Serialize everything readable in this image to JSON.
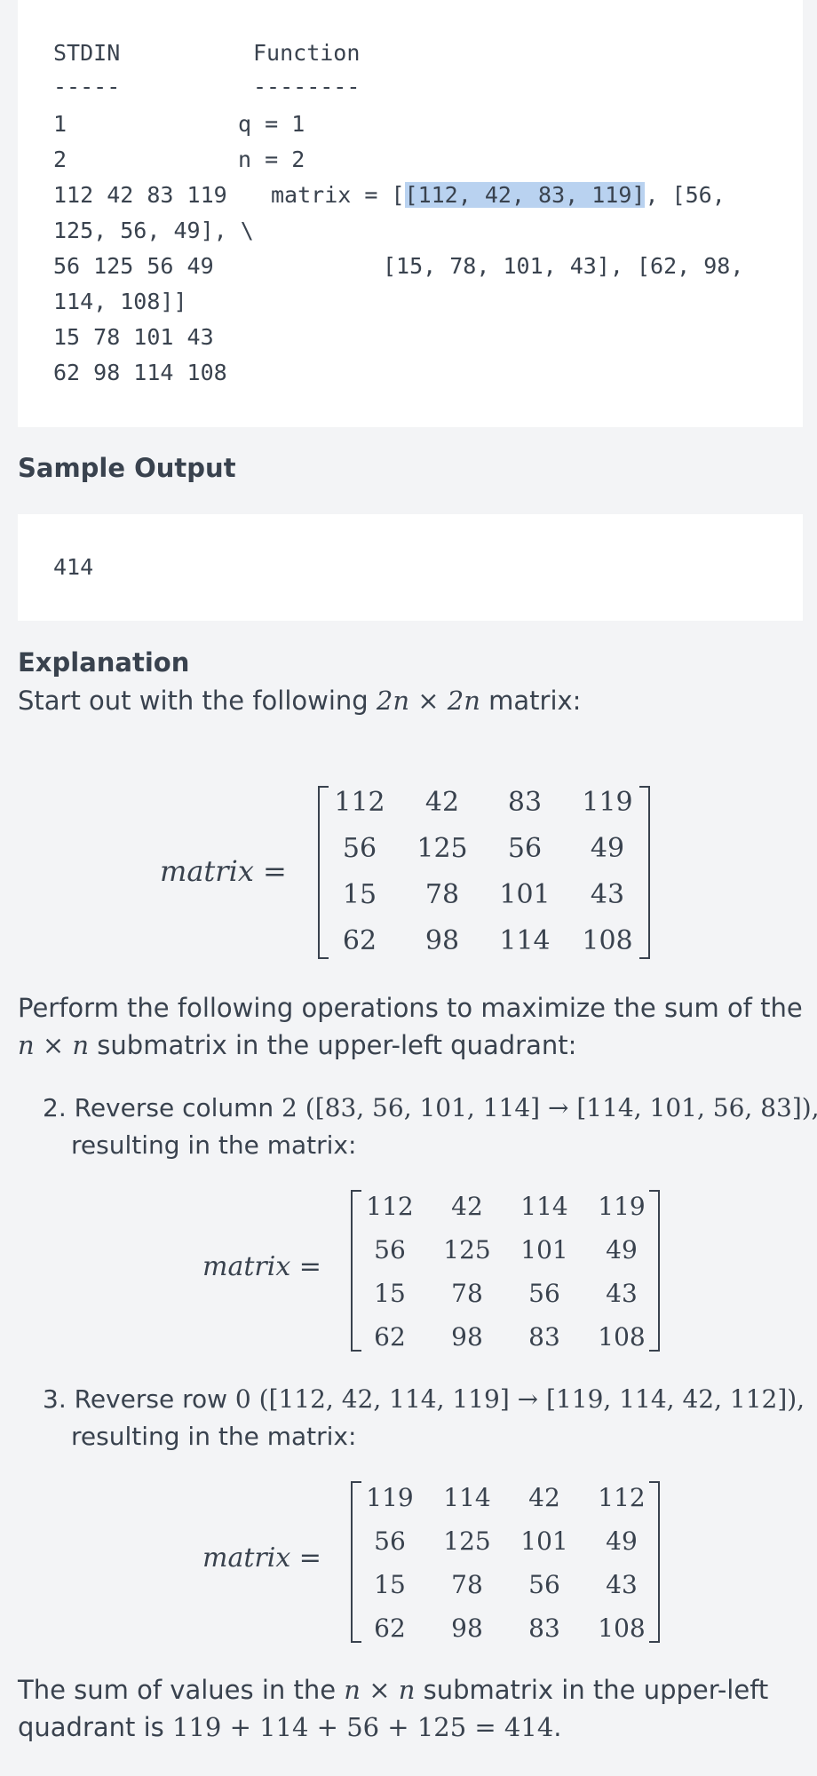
{
  "sample_input": {
    "lines": [
      {
        "stdin": "STDIN",
        "func": "Function"
      },
      {
        "stdin": "-----",
        "func": "--------"
      },
      {
        "stdin": "1",
        "func": "q = 1"
      },
      {
        "stdin": "2",
        "func": "n = 2"
      },
      {
        "stdin": "112 42 83 119",
        "func_pre": "matrix = [",
        "func_hl": "[112, 42, 83, 119]",
        "func_post": ", [56,"
      },
      {
        "stdin": "125, 56, 49], \\"
      },
      {
        "stdin": "56 125 56 49",
        "func": "[15, 78, 101, 43], [62, 98,"
      },
      {
        "stdin": "114, 108]]"
      },
      {
        "stdin": "15 78 101 43"
      },
      {
        "stdin": "62 98 114 108"
      }
    ]
  },
  "sample_output": {
    "title": "Sample Output",
    "value": "414"
  },
  "explanation": {
    "title": "Explanation",
    "intro_pre": "Start out with the following ",
    "intro_math": "2n × 2n",
    "intro_post": " matrix:",
    "matrix_label": "matrix",
    "matrix_eq": "=",
    "matrix_initial": [
      [
        "112",
        "42",
        "83",
        "119"
      ],
      [
        "56",
        "125",
        "56",
        "49"
      ],
      [
        "15",
        "78",
        "101",
        "43"
      ],
      [
        "62",
        "98",
        "114",
        "108"
      ]
    ],
    "perform_line1": "Perform the following operations to maximize the sum of the",
    "perform_line2_math": "n × n",
    "perform_line2_text": " submatrix in the upper-left quadrant:",
    "step2": {
      "num": "2.",
      "text_pre": "Reverse column ",
      "col": "2",
      "change": "([83, 56, 101, 114] → [114, 101, 56, 83]),",
      "line2": "resulting in the matrix:",
      "matrix": [
        [
          "112",
          "42",
          "114",
          "119"
        ],
        [
          "56",
          "125",
          "101",
          "49"
        ],
        [
          "15",
          "78",
          "56",
          "43"
        ],
        [
          "62",
          "98",
          "83",
          "108"
        ]
      ]
    },
    "step3": {
      "num": "3.",
      "text_pre": "Reverse row ",
      "row": "0",
      "change": "([112, 42, 114, 119] → [119, 114, 42, 112]),",
      "line2": "resulting in the matrix:",
      "matrix": [
        [
          "119",
          "114",
          "42",
          "112"
        ],
        [
          "56",
          "125",
          "101",
          "49"
        ],
        [
          "15",
          "78",
          "56",
          "43"
        ],
        [
          "62",
          "98",
          "83",
          "108"
        ]
      ]
    },
    "conclusion_pre": "The sum of values in the ",
    "conclusion_math": "n × n",
    "conclusion_post": " submatrix in the upper-left",
    "conclusion_line2_pre": "quadrant is ",
    "conclusion_line2_math": "119 + 114 + 56 + 125 = 414",
    "conclusion_line2_post": "."
  }
}
